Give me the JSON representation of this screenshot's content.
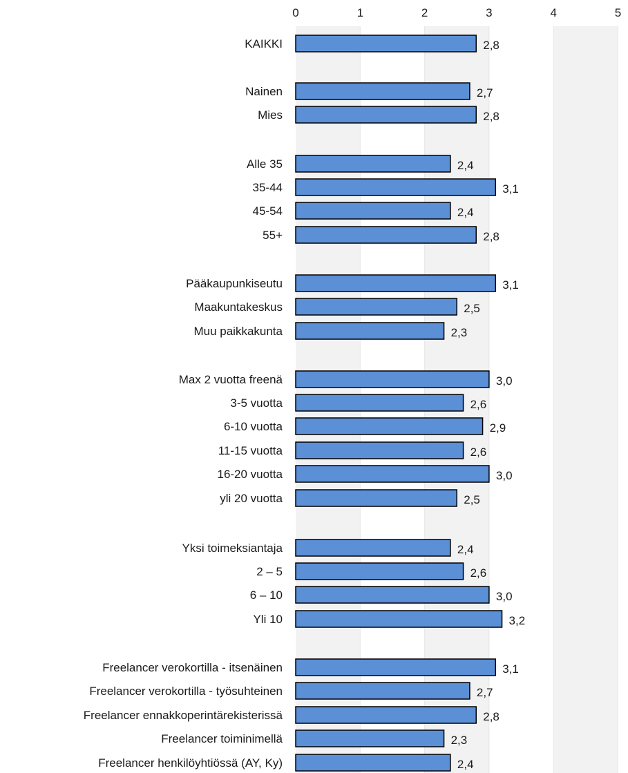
{
  "chart_data": {
    "type": "bar",
    "orientation": "horizontal",
    "title": "",
    "xlabel": "",
    "ylabel": "",
    "xlim": [
      0,
      5
    ],
    "ticks": [
      "0",
      "1",
      "2",
      "3",
      "4",
      "5"
    ],
    "grid": true,
    "legend": "none",
    "bar_color": "#5b8fd6",
    "bar_border_color": "#000000",
    "band_colors": [
      "#f2f2f2",
      "#ffffff"
    ],
    "bars": [
      {
        "label": "KAIKKI",
        "value": 2.8,
        "value_label": "2,8"
      },
      {
        "label": "Nainen",
        "value": 2.7,
        "value_label": "2,7"
      },
      {
        "label": "Mies",
        "value": 2.8,
        "value_label": "2,8"
      },
      {
        "label": "Alle 35",
        "value": 2.4,
        "value_label": "2,4"
      },
      {
        "label": "35-44",
        "value": 3.1,
        "value_label": "3,1"
      },
      {
        "label": "45-54",
        "value": 2.4,
        "value_label": "2,4"
      },
      {
        "label": "55+",
        "value": 2.8,
        "value_label": "2,8"
      },
      {
        "label": "Pääkaupunkiseutu",
        "value": 3.1,
        "value_label": "3,1"
      },
      {
        "label": "Maakuntakeskus",
        "value": 2.5,
        "value_label": "2,5"
      },
      {
        "label": "Muu paikkakunta",
        "value": 2.3,
        "value_label": "2,3"
      },
      {
        "label": "Max 2 vuotta freenä",
        "value": 3.0,
        "value_label": "3,0"
      },
      {
        "label": "3-5 vuotta",
        "value": 2.6,
        "value_label": "2,6"
      },
      {
        "label": "6-10 vuotta",
        "value": 2.9,
        "value_label": "2,9"
      },
      {
        "label": "11-15 vuotta",
        "value": 2.6,
        "value_label": "2,6"
      },
      {
        "label": "16-20 vuotta",
        "value": 3.0,
        "value_label": "3,0"
      },
      {
        "label": "yli 20 vuotta",
        "value": 2.5,
        "value_label": "2,5"
      },
      {
        "label": "Yksi toimeksiantaja",
        "value": 2.4,
        "value_label": "2,4"
      },
      {
        "label": "2 – 5",
        "value": 2.6,
        "value_label": "2,6"
      },
      {
        "label": "6 – 10",
        "value": 3.0,
        "value_label": "3,0"
      },
      {
        "label": "Yli 10",
        "value": 3.2,
        "value_label": "3,2"
      },
      {
        "label": "Freelancer verokortilla - itsenäinen",
        "value": 3.1,
        "value_label": "3,1"
      },
      {
        "label": "Freelancer verokortilla - työsuhteinen",
        "value": 2.7,
        "value_label": "2,7"
      },
      {
        "label": "Freelancer ennakkoperintärekisterissä",
        "value": 2.8,
        "value_label": "2,8"
      },
      {
        "label": "Freelancer toiminimellä",
        "value": 2.3,
        "value_label": "2,3"
      },
      {
        "label": "Freelancer henkilöyhtiössä (AY, Ky)",
        "value": 2.4,
        "value_label": "2,4"
      }
    ]
  }
}
